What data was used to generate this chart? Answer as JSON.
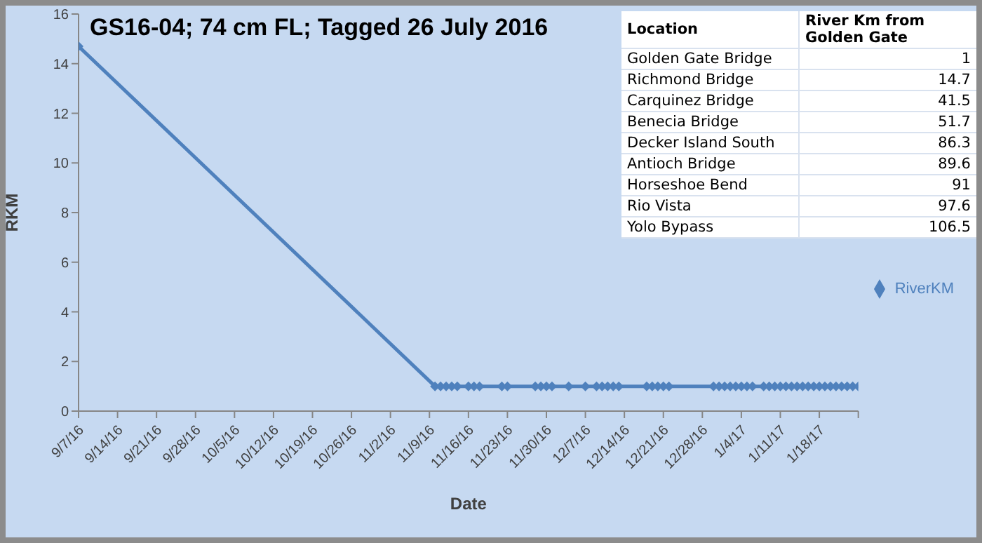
{
  "chart_data": {
    "type": "line",
    "title": "GS16-04; 74 cm FL; Tagged 26 July 2016",
    "xlabel": "Date",
    "ylabel": "RKM",
    "x": [
      "2016-09-07",
      "2016-11-10",
      "2016-11-11",
      "2016-11-12",
      "2016-11-13",
      "2016-11-14",
      "2016-11-16",
      "2016-11-17",
      "2016-11-18",
      "2016-11-22",
      "2016-11-23",
      "2016-11-28",
      "2016-11-29",
      "2016-11-30",
      "2016-12-01",
      "2016-12-04",
      "2016-12-07",
      "2016-12-09",
      "2016-12-10",
      "2016-12-11",
      "2016-12-12",
      "2016-12-13",
      "2016-12-18",
      "2016-12-19",
      "2016-12-20",
      "2016-12-21",
      "2016-12-22",
      "2016-12-30",
      "2016-12-31",
      "2017-01-01",
      "2017-01-02",
      "2017-01-03",
      "2017-01-04",
      "2017-01-05",
      "2017-01-06",
      "2017-01-08",
      "2017-01-09",
      "2017-01-10",
      "2017-01-11",
      "2017-01-12",
      "2017-01-13",
      "2017-01-14",
      "2017-01-15",
      "2017-01-16",
      "2017-01-17",
      "2017-01-18",
      "2017-01-19",
      "2017-01-20",
      "2017-01-21",
      "2017-01-22",
      "2017-01-23",
      "2017-01-24",
      "2017-01-25"
    ],
    "series": [
      {
        "name": "RiverKM",
        "color": "#4f81bd",
        "values": [
          14.7,
          1,
          1,
          1,
          1,
          1,
          1,
          1,
          1,
          1,
          1,
          1,
          1,
          1,
          1,
          1,
          1,
          1,
          1,
          1,
          1,
          1,
          1,
          1,
          1,
          1,
          1,
          1,
          1,
          1,
          1,
          1,
          1,
          1,
          1,
          1,
          1,
          1,
          1,
          1,
          1,
          1,
          1,
          1,
          1,
          1,
          1,
          1,
          1,
          1,
          1,
          1,
          1
        ]
      }
    ],
    "xlim": [
      "2016-09-07",
      "2017-01-25"
    ],
    "xticks": [
      {
        "value": "2016-09-07",
        "label": "9/7/16"
      },
      {
        "value": "2016-09-14",
        "label": "9/14/16"
      },
      {
        "value": "2016-09-21",
        "label": "9/21/16"
      },
      {
        "value": "2016-09-28",
        "label": "9/28/16"
      },
      {
        "value": "2016-10-05",
        "label": "10/5/16"
      },
      {
        "value": "2016-10-12",
        "label": "10/12/16"
      },
      {
        "value": "2016-10-19",
        "label": "10/19/16"
      },
      {
        "value": "2016-10-26",
        "label": "10/26/16"
      },
      {
        "value": "2016-11-02",
        "label": "11/2/16"
      },
      {
        "value": "2016-11-09",
        "label": "11/9/16"
      },
      {
        "value": "2016-11-16",
        "label": "11/16/16"
      },
      {
        "value": "2016-11-23",
        "label": "11/23/16"
      },
      {
        "value": "2016-11-30",
        "label": "11/30/16"
      },
      {
        "value": "2016-12-07",
        "label": "12/7/16"
      },
      {
        "value": "2016-12-14",
        "label": "12/14/16"
      },
      {
        "value": "2016-12-21",
        "label": "12/21/16"
      },
      {
        "value": "2016-12-28",
        "label": "12/28/16"
      },
      {
        "value": "2017-01-04",
        "label": "1/4/17"
      },
      {
        "value": "2017-01-11",
        "label": "1/11/17"
      },
      {
        "value": "2017-01-18",
        "label": "1/18/17"
      },
      {
        "value": "2017-01-25",
        "label": null
      }
    ],
    "ylim": [
      0,
      16
    ],
    "yticks": [
      0,
      2,
      4,
      6,
      8,
      10,
      12,
      14,
      16
    ],
    "grid": false,
    "legend": "right",
    "marker": "diamond",
    "line_style": "solid",
    "annotations": [
      "Location",
      "River Km from Golden Gate",
      "Golden Gate Bridge",
      "1",
      "Richmond Bridge",
      "14.7",
      "Carquinez Bridge",
      "41.5",
      "Benecia Bridge",
      "51.7",
      "Decker Island South",
      "86.3",
      "Antioch Bridge",
      "89.6",
      "Horseshoe Bend",
      "91",
      "Rio Vista",
      "97.6",
      "Yolo Bypass",
      "106.5"
    ]
  }
}
